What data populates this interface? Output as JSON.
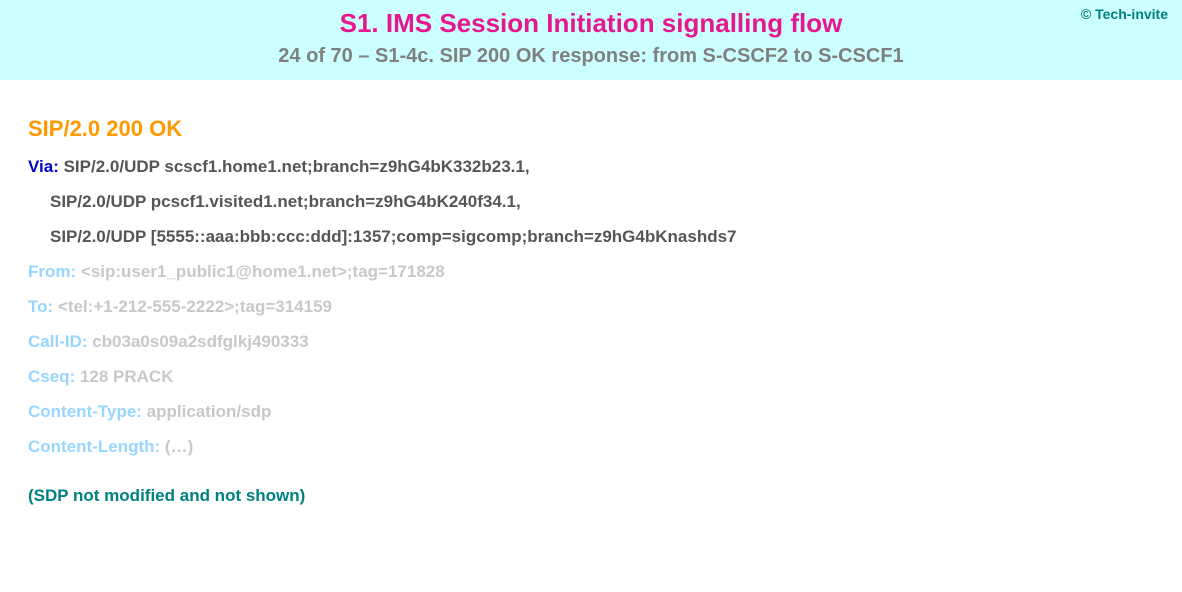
{
  "header": {
    "copyright": "© Tech-invite",
    "title": "S1. IMS Session Initiation signalling flow",
    "subtitle": "24 of 70 – S1-4c. SIP 200 OK response: from S-CSCF2 to S-CSCF1"
  },
  "sip": {
    "status_line": "SIP/2.0 200 OK",
    "via_label": "Via:",
    "via_1": " SIP/2.0/UDP scscf1.home1.net;branch=z9hG4bK332b23.1,",
    "via_2": "SIP/2.0/UDP pcscf1.visited1.net;branch=z9hG4bK240f34.1,",
    "via_3": "SIP/2.0/UDP [5555::aaa:bbb:ccc:ddd]:1357;comp=sigcomp;branch=z9hG4bKnashds7",
    "from_label": "From:",
    "from_val": " <sip:user1_public1@home1.net>;tag=171828",
    "to_label": "To:",
    "to_val": " <tel:+1-212-555-2222>;tag=314159",
    "callid_label": "Call-ID:",
    "callid_val": " cb03a0s09a2sdfglkj490333",
    "cseq_label": "Cseq:",
    "cseq_val": " 128 PRACK",
    "ctype_label": "Content-Type:",
    "ctype_val": " application/sdp",
    "clen_label": "Content-Length:",
    "clen_val": " (…)",
    "note": "(SDP not modified and not shown)"
  },
  "colors": {
    "header_bg": "#ccffff",
    "title": "#e6178f",
    "subtitle": "#808080",
    "copyright": "#008080",
    "status": "#ff9900",
    "hdr_active": "#0000cc",
    "val_active": "#555555",
    "hdr_inactive": "#99d6ff",
    "val_inactive": "#c8c8c8",
    "note": "#008080"
  },
  "fontsizes": {
    "title": 26,
    "subtitle": 20,
    "status": 22,
    "body": 17,
    "copyright": 14
  }
}
